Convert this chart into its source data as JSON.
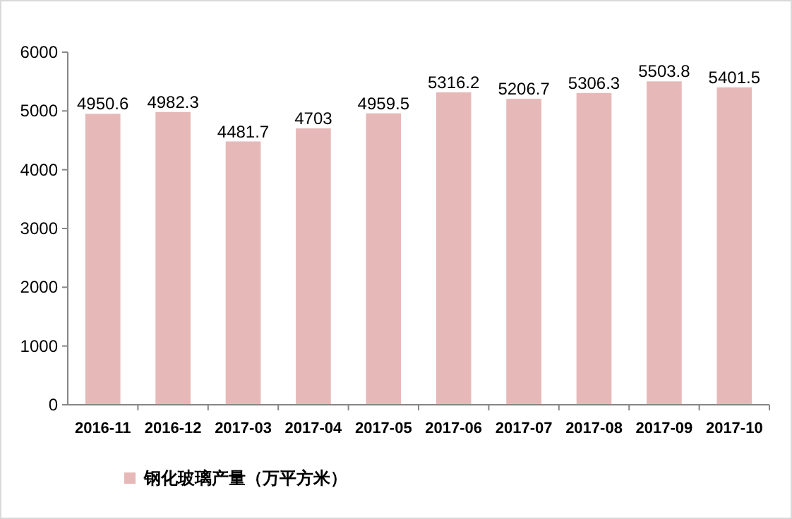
{
  "chart_data": {
    "type": "bar",
    "categories": [
      "2016-11",
      "2016-12",
      "2017-03",
      "2017-04",
      "2017-05",
      "2017-06",
      "2017-07",
      "2017-08",
      "2017-09",
      "2017-10"
    ],
    "series": [
      {
        "name": "钢化玻璃产量（万平方米）",
        "color": "#e6b9b8",
        "values": [
          4950.6,
          4982.3,
          4481.7,
          4703,
          4959.5,
          5316.2,
          5206.7,
          5306.3,
          5503.8,
          5401.5
        ]
      }
    ],
    "ylim": [
      0,
      6000
    ],
    "yticks": [
      0,
      1000,
      2000,
      3000,
      4000,
      5000,
      6000
    ],
    "data_labels": true,
    "legend": "bottom"
  }
}
